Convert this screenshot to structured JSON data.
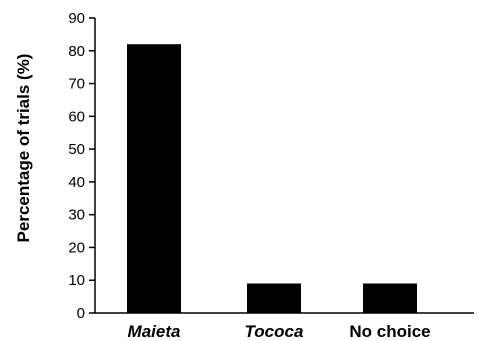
{
  "chart_data": {
    "type": "bar",
    "categories": [
      "Maieta",
      "Tococa",
      "No choice"
    ],
    "category_italic": [
      true,
      true,
      false
    ],
    "values": [
      82,
      9,
      9
    ],
    "xlabel": "",
    "ylabel": "Percentage of trials (%)",
    "ylim": [
      0,
      90
    ],
    "yticks": [
      0,
      10,
      20,
      30,
      40,
      50,
      60,
      70,
      80,
      90
    ],
    "bar_color": "#000000",
    "grid": false,
    "legend": "none"
  }
}
